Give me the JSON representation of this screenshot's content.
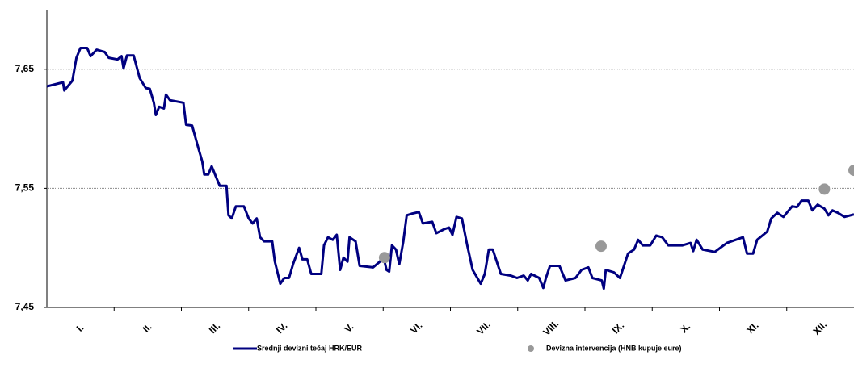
{
  "chart_data": {
    "type": "line",
    "categories": [
      "I.",
      "II.",
      "III.",
      "IV.",
      "V.",
      "VI.",
      "VII.",
      "VIII.",
      "IX.",
      "X.",
      "XI.",
      "XII."
    ],
    "xlim": [
      0,
      12
    ],
    "ylim": [
      7.45,
      7.7
    ],
    "yticks": [
      {
        "value": 7.45,
        "label": "7,45"
      },
      {
        "value": 7.55,
        "label": "7,55"
      },
      {
        "value": 7.65,
        "label": "7,65"
      }
    ],
    "grid": true,
    "series": [
      {
        "name": "Srednji devizni tečaj HRK/EUR",
        "color": "#000080",
        "type": "line",
        "x": [
          0,
          0.24,
          0.26,
          0.38,
          0.44,
          0.5,
          0.6,
          0.65,
          0.74,
          0.86,
          0.92,
          1.05,
          1.11,
          1.14,
          1.19,
          1.29,
          1.38,
          1.47,
          1.53,
          1.59,
          1.62,
          1.67,
          1.74,
          1.77,
          1.83,
          2.03,
          2.07,
          2.16,
          2.25,
          2.31,
          2.34,
          2.4,
          2.45,
          2.52,
          2.57,
          2.67,
          2.7,
          2.75,
          2.81,
          2.93,
          3.0,
          3.06,
          3.12,
          3.17,
          3.23,
          3.35,
          3.39,
          3.47,
          3.53,
          3.6,
          3.66,
          3.75,
          3.8,
          3.87,
          3.93,
          4.08,
          4.12,
          4.18,
          4.25,
          4.31,
          4.36,
          4.41,
          4.47,
          4.5,
          4.59,
          4.65,
          4.85,
          4.95,
          5.0,
          5.05,
          5.09,
          5.13,
          5.19,
          5.24,
          5.3,
          5.35,
          5.43,
          5.53,
          5.59,
          5.73,
          5.79,
          5.91,
          5.98,
          6.03,
          6.09,
          6.17,
          6.25,
          6.33,
          6.45,
          6.51,
          6.57,
          6.63,
          6.75,
          6.9,
          6.99,
          7.09,
          7.15,
          7.2,
          7.32,
          7.38,
          7.42,
          7.48,
          7.62,
          7.71,
          7.86,
          7.95,
          8.05,
          8.11,
          8.25,
          8.28,
          8.31,
          8.43,
          8.52,
          8.58,
          8.64,
          8.73,
          8.79,
          8.86,
          8.97,
          9.06,
          9.15,
          9.24,
          9.45,
          9.57,
          9.61,
          9.66,
          9.75,
          9.93,
          10.11,
          10.35,
          10.41,
          10.5,
          10.56,
          10.71,
          10.77,
          10.86,
          10.95,
          11.08,
          11.15,
          11.22,
          11.32,
          11.38,
          11.46,
          11.56,
          11.62,
          11.68,
          11.76,
          11.86,
          12.0
        ],
        "values": [
          7.6356,
          7.639,
          7.6322,
          7.6404,
          7.6596,
          7.6678,
          7.6678,
          7.661,
          7.6664,
          7.6644,
          7.6596,
          7.6582,
          7.661,
          7.6507,
          7.6616,
          7.6616,
          7.6425,
          7.6342,
          7.6336,
          7.6219,
          7.6116,
          7.6185,
          7.6171,
          7.6288,
          7.624,
          7.6219,
          7.6034,
          7.6027,
          7.5842,
          7.5726,
          7.5616,
          7.5616,
          7.5685,
          7.5589,
          7.5521,
          7.5521,
          7.5274,
          7.5247,
          7.5349,
          7.5349,
          7.5247,
          7.5205,
          7.5247,
          7.5089,
          7.5055,
          7.5055,
          7.4884,
          7.4699,
          7.4747,
          7.4747,
          7.4863,
          7.5,
          7.4904,
          7.4904,
          7.4781,
          7.4781,
          7.5021,
          7.5089,
          7.5068,
          7.511,
          7.4815,
          7.4918,
          7.4884,
          7.5089,
          7.5055,
          7.4849,
          7.4836,
          7.4884,
          7.4932,
          7.4815,
          7.4801,
          7.5021,
          7.4986,
          7.4863,
          7.5055,
          7.5274,
          7.5288,
          7.5301,
          7.5205,
          7.5219,
          7.5123,
          7.5158,
          7.5171,
          7.511,
          7.526,
          7.5247,
          7.5021,
          7.4815,
          7.4699,
          7.4781,
          7.4986,
          7.4986,
          7.4781,
          7.4767,
          7.4747,
          7.4767,
          7.4726,
          7.4781,
          7.4747,
          7.4664,
          7.4747,
          7.4849,
          7.4849,
          7.4726,
          7.4747,
          7.4815,
          7.4836,
          7.4747,
          7.4726,
          7.4658,
          7.4815,
          7.4795,
          7.4747,
          7.4849,
          7.4952,
          7.4986,
          7.5068,
          7.5021,
          7.5021,
          7.5103,
          7.5089,
          7.5021,
          7.5021,
          7.5041,
          7.4973,
          7.5068,
          7.4986,
          7.4966,
          7.5041,
          7.5089,
          7.4952,
          7.4952,
          7.5068,
          7.5137,
          7.5247,
          7.5295,
          7.526,
          7.5349,
          7.5342,
          7.5397,
          7.5397,
          7.5315,
          7.5363,
          7.5329,
          7.5274,
          7.5315,
          7.5295,
          7.526,
          7.5281
        ]
      },
      {
        "name": "Devizna intervencija (HNB kupuje eure)",
        "color": "#999999",
        "type": "scatter",
        "x": [
          5.02,
          8.24,
          11.56,
          12.0
        ],
        "values": [
          7.4918,
          7.5014,
          7.5493,
          7.5651
        ]
      }
    ]
  }
}
